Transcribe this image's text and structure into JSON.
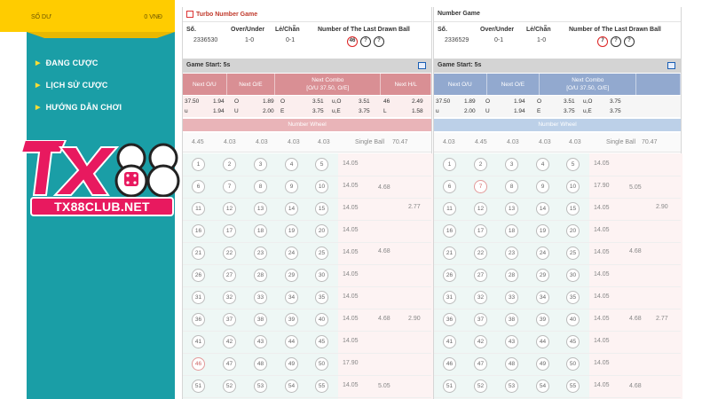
{
  "balance": {
    "label": "SỐ DƯ",
    "value": "0 VNĐ"
  },
  "menu": [
    {
      "label": "ĐANG CƯỢC"
    },
    {
      "label": "LỊCH SỬ CƯỢC"
    },
    {
      "label": "HƯỚNG DẪN CHƠI"
    }
  ],
  "logo": {
    "brand": "TX88",
    "site": "TX88CLUB.NET"
  },
  "colors": {
    "sidebar": "#1a9ea6",
    "balance": "#ffcc00",
    "logo_pink": "#e8195f",
    "left_header": "#d98f94",
    "right_header": "#92a9cf"
  },
  "left": {
    "title": "Turbo Number Game",
    "headers": {
      "so": "Số.",
      "over_under": "Over/Under",
      "le_chan": "Lẻ/Chẵn",
      "last_drawn": "Number of The Last Drawn Ball"
    },
    "values": {
      "so": "2336530",
      "over_under": "1-0",
      "le_chan": "0-1"
    },
    "drawn": {
      "ball": "46",
      "q1": "?",
      "q2": "?"
    },
    "game_start": "Game Start: 5s",
    "next": {
      "ou": "Next O/U",
      "oe": "Next O/E",
      "combo1": "Next Combo",
      "combo2": "[O/U 37.50, O/E]",
      "hl": "Next H/L"
    },
    "odds1": [
      "37.50",
      "1.94",
      "O",
      "1.89",
      "O",
      "3.51",
      "u,O",
      "3.51",
      "46",
      "2.49"
    ],
    "odds2": [
      "u",
      "1.94",
      "U",
      "2.00",
      "E",
      "3.75",
      "u,E",
      "3.75",
      "L",
      "1.58"
    ],
    "number_wheel": "Number Wheel",
    "stats": [
      "4.45",
      "4.03",
      "4.03",
      "4.03",
      "4.03"
    ],
    "single_ball": "Single Ball",
    "single_ball_val": "70.47",
    "row_odds": [
      "14.05",
      "14.05",
      "14.05",
      "14.05",
      "14.05",
      "14.05",
      "14.05",
      "14.05",
      "14.05",
      "17.90",
      "14.05"
    ],
    "mid_odds": [
      "4.68",
      "4.68",
      "4.68",
      "5.05"
    ],
    "right_odds": [
      "2.77",
      "2.90"
    ]
  },
  "right": {
    "title": "Number Game",
    "headers": {
      "so": "Số.",
      "over_under": "Over/Under",
      "le_chan": "Lẻ/Chẵn",
      "last_drawn": "Number of The Last Drawn Ball"
    },
    "values": {
      "so": "2336529",
      "over_under": "0-1",
      "le_chan": "1-0"
    },
    "drawn": {
      "ball": "7",
      "q1": "?",
      "q2": "?"
    },
    "game_start": "Game Start: 5s",
    "next": {
      "ou": "Next O/U",
      "oe": "Next O/E",
      "combo1": "Next Combo",
      "combo2": "[O/U 37.50, O/E]"
    },
    "odds1": [
      "37.50",
      "1.89",
      "O",
      "1.94",
      "O",
      "3.51",
      "u,O",
      "3.75"
    ],
    "odds2": [
      "u",
      "2.00",
      "U",
      "1.94",
      "E",
      "3.75",
      "u,E",
      "3.75"
    ],
    "number_wheel": "Number Wheel",
    "stats": [
      "4.03",
      "4.45",
      "4.03",
      "4.03",
      "4.03"
    ],
    "single_ball": "Single Ball",
    "single_ball_val": "70.47",
    "row_odds": [
      "14.05",
      "17.90",
      "14.05",
      "14.05",
      "14.05",
      "14.05",
      "14.05",
      "14.05",
      "14.05",
      "14.05",
      "14.05"
    ],
    "mid_odds": [
      "5.05",
      "4.68",
      "4.68",
      "4.68"
    ],
    "right_odds": [
      "2.90",
      "2.77"
    ]
  }
}
